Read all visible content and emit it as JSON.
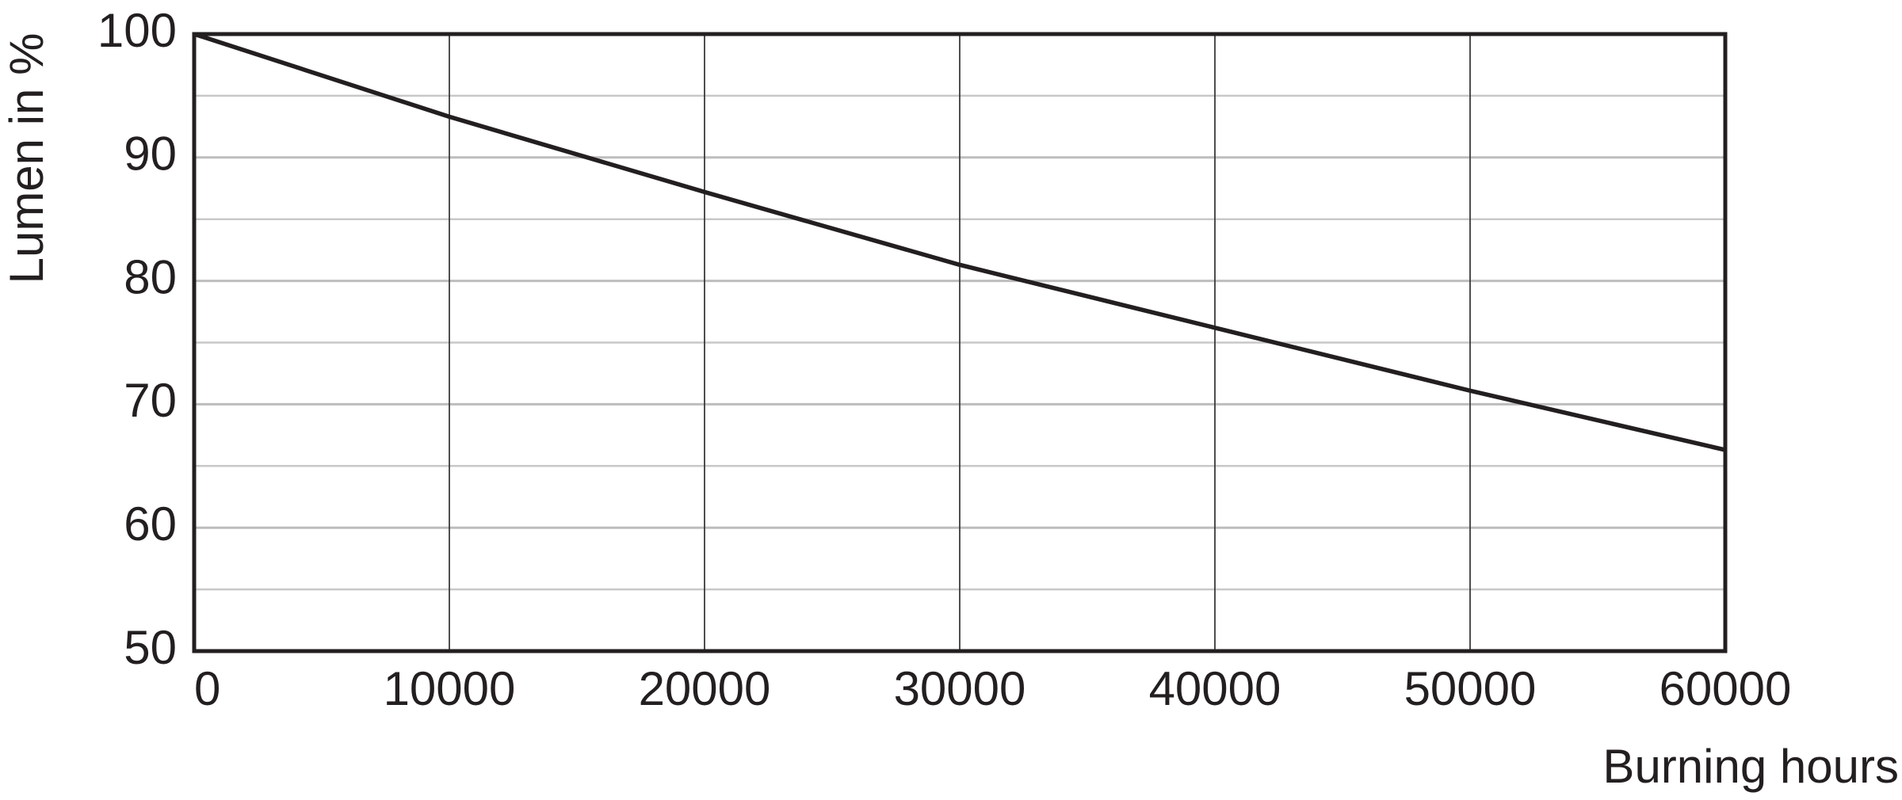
{
  "chart_data": {
    "type": "line",
    "ylabel": "Lumen in %",
    "xlabel": "Burning hours",
    "x": [
      0,
      10000,
      20000,
      30000,
      40000,
      50000,
      60000
    ],
    "values": [
      100,
      93.3,
      87.2,
      81.3,
      76.2,
      71.1,
      66.3
    ],
    "color": "#231f20",
    "xlim": [
      0,
      60000
    ],
    "xticks": [
      0,
      10000,
      20000,
      30000,
      40000,
      50000,
      60000
    ],
    "ylim": [
      50,
      100
    ],
    "yticks": [
      50,
      60,
      70,
      80,
      90,
      100
    ],
    "minor_yticks": [
      55,
      65,
      75,
      85,
      95
    ],
    "grid": true
  }
}
